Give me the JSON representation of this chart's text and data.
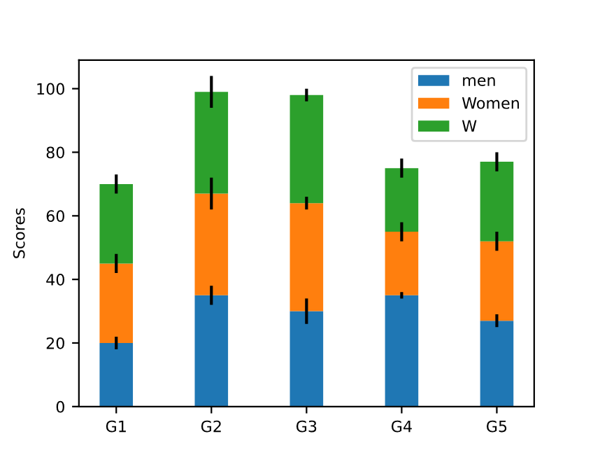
{
  "chart_data": {
    "type": "bar",
    "stacked": true,
    "ylabel": "Scores",
    "categories": [
      "G1",
      "G2",
      "G3",
      "G4",
      "G5"
    ],
    "series": [
      {
        "name": "men",
        "color": "#1f77b4",
        "values": [
          20,
          35,
          30,
          35,
          27
        ],
        "errors": [
          2,
          3,
          4,
          1,
          2
        ]
      },
      {
        "name": "Women",
        "color": "#ff7f0e",
        "values": [
          25,
          32,
          34,
          20,
          25
        ],
        "errors": [
          3,
          5,
          2,
          3,
          3
        ]
      },
      {
        "name": "W",
        "color": "#2ca02c",
        "values": [
          25,
          32,
          34,
          20,
          25
        ],
        "errors": [
          3,
          5,
          2,
          3,
          3
        ]
      }
    ],
    "ylim": [
      0,
      109
    ],
    "yticks": [
      0,
      20,
      40,
      60,
      80,
      100
    ],
    "grid": false,
    "legend": "top right"
  }
}
